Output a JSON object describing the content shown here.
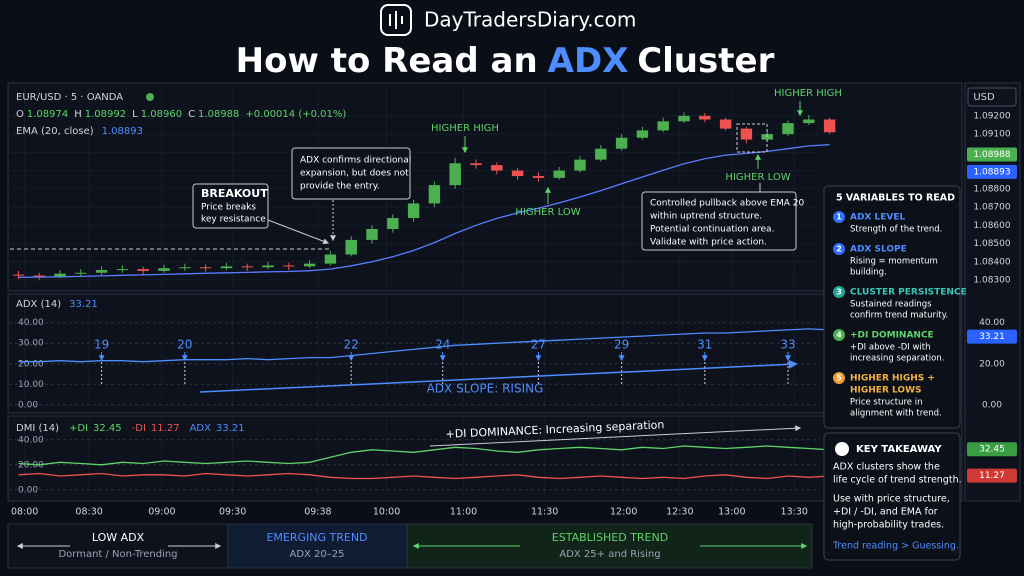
{
  "ui": {
    "logo": "DayTradersDiary.com",
    "title": [
      "How to Read an",
      "ADX",
      "Cluster"
    ],
    "legend": {
      "symbol": "EUR/USD · 5 · OANDA",
      "ohlc": [
        {
          "k": "O",
          "v": "1.08974"
        },
        {
          "k": "H",
          "v": "1.08992"
        },
        {
          "k": "L",
          "v": "1.08960"
        },
        {
          "k": "C",
          "v": "1.08988"
        }
      ],
      "change": "+0.00014 (+0.01%)",
      "ema_value": "1.08893"
    },
    "currency": "USD",
    "breakout": {
      "title": "BREAKOUT",
      "lines": [
        "Price breaks",
        "key resistance"
      ]
    },
    "confirm": [
      "ADX confirms directional",
      "expansion, but does not",
      "provide the entry."
    ],
    "pullback": [
      "Controlled pullback above EMA 20",
      "within uptrend structure.",
      "Potential continuation area.",
      "Validate with price action."
    ],
    "labels": {
      "hh1": "HIGHER HIGH",
      "hl1": "HIGHER LOW",
      "hl2": "HIGHER LOW",
      "hh2": "HIGHER HIGH"
    },
    "adx_header": {
      "name": "ADX (14)",
      "value": "33.21"
    },
    "adx_slope": "ADX SLOPE: RISING",
    "dmi_header": {
      "name": "DMI (14)",
      "pdi": "+DI",
      "pdi_v": "32.45",
      "mdi": "-DI",
      "mdi_v": "11.27",
      "adx": "ADX",
      "adx_v": "33.21"
    },
    "dmi_note": "+DI DOMINANCE: Increasing separation",
    "variables": {
      "title": "5 VARIABLES TO READ",
      "items": [
        {
          "n": "1",
          "title": [
            "ADX LEVEL"
          ],
          "lines": [
            "Strength of the trend."
          ]
        },
        {
          "n": "2",
          "title": [
            "ADX SLOPE"
          ],
          "lines": [
            "Rising = momentum",
            "building."
          ]
        },
        {
          "n": "3",
          "title": [
            "CLUSTER PERSISTENCE"
          ],
          "lines": [
            "Sustained readings",
            "confirm trend maturity."
          ]
        },
        {
          "n": "4",
          "title": [
            "+DI DOMINANCE"
          ],
          "lines": [
            "+DI above -DI with",
            "increasing separation."
          ]
        },
        {
          "n": "5",
          "title": [
            "HIGHER HIGHS +",
            "HIGHER LOWS"
          ],
          "lines": [
            "Price structure in",
            "alignment with trend."
          ]
        }
      ]
    },
    "takeaway": {
      "title": "KEY TAKEAWAY",
      "p1": [
        "ADX clusters show the",
        "life cycle of trend strength."
      ],
      "p2": [
        "Use with price structure,",
        "+DI / -DI, and EMA for",
        "high-probability trades."
      ],
      "cta": "Trend reading > Guessing."
    },
    "phases": [
      {
        "title": "LOW ADX",
        "sub": "Dormant / Non-Trending"
      },
      {
        "title": "EMERGING TREND",
        "sub": "ADX 20–25"
      },
      {
        "title": "ESTABLISHED TREND",
        "sub": "ADX 25+ and Rising"
      }
    ]
  },
  "chart_data": [
    {
      "type": "candlestick",
      "up_color": "#4caf50",
      "down_color": "#ef5350",
      "candles": [
        [
          1.0833,
          1.0835,
          1.08305,
          1.08325
        ],
        [
          1.08325,
          1.0834,
          1.083,
          1.0832
        ],
        [
          1.0832,
          1.08355,
          1.0831,
          1.08335
        ],
        [
          1.08335,
          1.0836,
          1.0832,
          1.0834
        ],
        [
          1.0834,
          1.08375,
          1.08325,
          1.08355
        ],
        [
          1.08355,
          1.0838,
          1.0834,
          1.0836
        ],
        [
          1.0836,
          1.08375,
          1.0833,
          1.0835
        ],
        [
          1.0835,
          1.08385,
          1.0834,
          1.08365
        ],
        [
          1.08365,
          1.0839,
          1.0835,
          1.0837
        ],
        [
          1.0837,
          1.08385,
          1.08345,
          1.08365
        ],
        [
          1.08365,
          1.08395,
          1.08355,
          1.08375
        ],
        [
          1.08375,
          1.0839,
          1.0835,
          1.0837
        ],
        [
          1.0837,
          1.084,
          1.0836,
          1.0838
        ],
        [
          1.0838,
          1.08395,
          1.08355,
          1.08375
        ],
        [
          1.08375,
          1.0841,
          1.08365,
          1.0839
        ],
        [
          1.0839,
          1.0846,
          1.0838,
          1.0844
        ],
        [
          1.0844,
          1.0854,
          1.0843,
          1.0852
        ],
        [
          1.0852,
          1.086,
          1.085,
          1.0858
        ],
        [
          1.0858,
          1.0866,
          1.0856,
          1.0864
        ],
        [
          1.0864,
          1.0874,
          1.0862,
          1.0872
        ],
        [
          1.0872,
          1.0884,
          1.087,
          1.0882
        ],
        [
          1.0882,
          1.0897,
          1.088,
          1.0894
        ],
        [
          1.0894,
          1.0896,
          1.0891,
          1.0893
        ],
        [
          1.0893,
          1.08945,
          1.0888,
          1.089
        ],
        [
          1.089,
          1.08915,
          1.0885,
          1.0887
        ],
        [
          1.0887,
          1.0889,
          1.0884,
          1.0886
        ],
        [
          1.0886,
          1.0892,
          1.0885,
          1.089
        ],
        [
          1.089,
          1.0898,
          1.0889,
          1.0896
        ],
        [
          1.0896,
          1.0904,
          1.0895,
          1.0902
        ],
        [
          1.0902,
          1.091,
          1.0901,
          1.0908
        ],
        [
          1.0908,
          1.0914,
          1.0907,
          1.0912
        ],
        [
          1.0912,
          1.0919,
          1.0911,
          1.0917
        ],
        [
          1.0917,
          1.0922,
          1.0916,
          1.092
        ],
        [
          1.092,
          1.09215,
          1.09165,
          1.0918
        ],
        [
          1.0918,
          1.0919,
          1.0912,
          1.0913
        ],
        [
          1.0913,
          1.0914,
          1.0905,
          1.0907
        ],
        [
          1.0907,
          1.09115,
          1.0906,
          1.091
        ],
        [
          1.091,
          1.09175,
          1.0909,
          1.0916
        ],
        [
          1.0916,
          1.09205,
          1.0915,
          1.0918
        ],
        [
          1.0918,
          1.0919,
          1.091,
          1.0911
        ]
      ],
      "series": [
        {
          "name": "EMA (20, close)",
          "color": "#5b7cff",
          "values": [
            1.08315,
            1.08316,
            1.08318,
            1.0832,
            1.08323,
            1.08326,
            1.08328,
            1.08331,
            1.08334,
            1.08337,
            1.0834,
            1.08342,
            1.08345,
            1.08347,
            1.08351,
            1.0836,
            1.08378,
            1.084,
            1.08428,
            1.08462,
            1.08505,
            1.08555,
            1.086,
            1.08638,
            1.08668,
            1.08694,
            1.08723,
            1.08755,
            1.0879,
            1.08828,
            1.08865,
            1.08902,
            1.08937,
            1.08965,
            1.08985,
            1.08994,
            1.09005,
            1.0902,
            1.09035,
            1.09042
          ]
        }
      ],
      "xlim": [
        -0.5,
        39.5
      ],
      "ylim": [
        1.0824,
        1.0938
      ],
      "yticks": [
        {
          "value": 1.092,
          "label": "1.09200"
        },
        {
          "value": 1.091,
          "label": "1.09100"
        },
        {
          "value": 1.09,
          "label": "1.09000"
        },
        {
          "value": 1.089,
          "label": "1.08900"
        },
        {
          "value": 1.088,
          "label": "1.08800"
        },
        {
          "value": 1.087,
          "label": "1.08700"
        },
        {
          "value": 1.086,
          "label": "1.08600"
        },
        {
          "value": 1.085,
          "label": "1.08500"
        },
        {
          "value": 1.084,
          "label": "1.08400"
        },
        {
          "value": 1.083,
          "label": "1.08300"
        }
      ],
      "price_tags": [
        {
          "value": 1.08988,
          "label": "1.08988",
          "color": "#4caf50"
        },
        {
          "value": 1.08893,
          "label": "1.08893",
          "color": "#2962ff"
        }
      ]
    },
    {
      "type": "line",
      "series": [
        {
          "name": "ADX",
          "color": "#4d8dff",
          "values": [
            21,
            21,
            21.5,
            21,
            21.5,
            21.5,
            21,
            21.5,
            22,
            22,
            22,
            22.5,
            22,
            22.5,
            23,
            23,
            24,
            25,
            26,
            27,
            28,
            29,
            29.5,
            30,
            30.5,
            31,
            31.5,
            32,
            32.5,
            33,
            33.5,
            34,
            34.5,
            35,
            35,
            35.5,
            36,
            36.5,
            37,
            36.5
          ]
        }
      ],
      "xlim": [
        -0.5,
        39.5
      ],
      "ylim": [
        -4,
        54
      ],
      "yticks": [
        {
          "value": 40,
          "label": "40.00"
        },
        {
          "value": 30,
          "label": "30.00"
        },
        {
          "value": 20,
          "label": "20.00"
        },
        {
          "value": 10,
          "label": "10.00"
        },
        {
          "value": 0,
          "label": "0.00"
        }
      ],
      "y2lim": [
        -4,
        54
      ],
      "y2ticks": [
        {
          "value": 40,
          "label": "40.00"
        },
        {
          "value": 20,
          "label": "20.00"
        },
        {
          "value": 0,
          "label": "0.00"
        }
      ],
      "annotations": [
        {
          "x": 4,
          "value": 19
        },
        {
          "x": 8,
          "value": 20
        },
        {
          "x": 16,
          "value": 22
        },
        {
          "x": 20.4,
          "value": 24
        },
        {
          "x": 25,
          "value": 27
        },
        {
          "x": 29,
          "value": 29
        },
        {
          "x": 33,
          "value": 31
        },
        {
          "x": 37,
          "value": 33
        }
      ],
      "price_tags": [
        {
          "value": 33.21,
          "label": "33.21",
          "color": "#2962ff"
        }
      ]
    },
    {
      "type": "line",
      "series": [
        {
          "name": "+DI",
          "color": "#5fd36a",
          "values": [
            21,
            20,
            22,
            21,
            20,
            22,
            21,
            23,
            22,
            21,
            22,
            23,
            22,
            21,
            22,
            26,
            30,
            32,
            31,
            30,
            32,
            34,
            33,
            31,
            30,
            32,
            33,
            34,
            33,
            32,
            34,
            33,
            35,
            34,
            33,
            34,
            35,
            34,
            33,
            32
          ]
        },
        {
          "name": "-DI",
          "color": "#ef5350",
          "values": [
            12,
            13,
            11,
            12,
            13,
            11,
            12,
            12,
            11,
            13,
            12,
            11,
            12,
            13,
            12,
            10,
            9,
            9,
            10,
            11,
            10,
            9,
            10,
            11,
            12,
            10,
            9,
            10,
            11,
            10,
            9,
            10,
            9,
            11,
            12,
            10,
            9,
            11,
            10,
            11
          ]
        }
      ],
      "xlim": [
        -0.5,
        39.5
      ],
      "ylim": [
        -9,
        59
      ],
      "yticks": [
        {
          "value": 40,
          "label": "40.00"
        },
        {
          "value": 20,
          "label": "20.00"
        },
        {
          "value": 0,
          "label": "0.00"
        }
      ],
      "xticks": [
        {
          "value": 0.3,
          "label": "08:00"
        },
        {
          "value": 3.4,
          "label": "08:30"
        },
        {
          "value": 6.9,
          "label": "09:00"
        },
        {
          "value": 10.3,
          "label": "09:30"
        },
        {
          "value": 14.4,
          "label": "09:38"
        },
        {
          "value": 17.7,
          "label": "10:00"
        },
        {
          "value": 21.4,
          "label": "11:00"
        },
        {
          "value": 25.3,
          "label": "11:30"
        },
        {
          "value": 29.1,
          "label": "12:00"
        },
        {
          "value": 31.8,
          "label": "12:30"
        },
        {
          "value": 34.3,
          "label": "13:00"
        },
        {
          "value": 37.3,
          "label": "13:30"
        }
      ],
      "price_tags": [
        {
          "value": 32.45,
          "label": "32.45",
          "color": "#3a9d44"
        },
        {
          "value": 11.27,
          "label": "11.27",
          "color": "#d03a36"
        }
      ]
    }
  ]
}
